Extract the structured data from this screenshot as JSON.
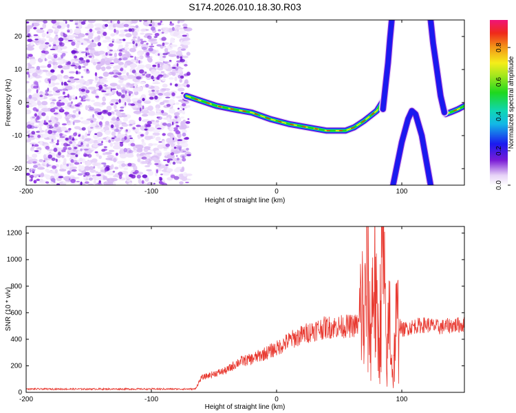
{
  "title": "S174.2026.010.18.30.R03",
  "chart_data": [
    {
      "type": "heatmap",
      "xlabel": "Height of straight line (km)",
      "ylabel": "Frequency (Hz)",
      "xlim": [
        -200,
        150
      ],
      "ylim": [
        -25,
        25
      ],
      "x_ticks": [
        -200,
        -100,
        0,
        100
      ],
      "x_tick_labels": [
        "-200",
        "-100",
        "0",
        "100"
      ],
      "y_ticks": [
        -20,
        -10,
        0,
        10,
        20
      ],
      "y_tick_labels": [
        "-20",
        "-10",
        "0",
        "10",
        "20"
      ],
      "noise_region_x": [
        -200,
        -70
      ],
      "tracks": [
        {
          "name": "main-doppler-track",
          "x": [
            -72,
            -60,
            -48,
            -35,
            -20,
            -5,
            10,
            25,
            40,
            55,
            62,
            70,
            80,
            85
          ],
          "y": [
            2,
            0.5,
            -1,
            -2,
            -3,
            -5,
            -6.5,
            -7.5,
            -8.5,
            -8.5,
            -7.5,
            -5.5,
            -2.5,
            0.5
          ]
        },
        {
          "name": "right-track",
          "x": [
            135,
            140,
            145,
            150
          ],
          "y": [
            -3.5,
            -2.8,
            -2,
            -1
          ]
        },
        {
          "name": "arch-track",
          "x": [
            93,
            100,
            105,
            108,
            111,
            116,
            123
          ],
          "y": [
            -25,
            -12,
            -5,
            -2.5,
            -3.5,
            -10,
            -25
          ]
        },
        {
          "name": "upper-left-branch",
          "x": [
            85,
            87,
            89,
            90.5,
            92
          ],
          "y": [
            -2,
            5,
            12,
            19,
            25
          ]
        },
        {
          "name": "upper-right-branch",
          "x": [
            123,
            125,
            128,
            131,
            134
          ],
          "y": [
            25,
            18,
            10,
            2,
            -3
          ]
        }
      ],
      "colorbar": {
        "label": "Normalized spectral amplitude",
        "ticks": [
          0.0,
          0.2,
          0.4,
          0.6,
          0.8
        ],
        "tick_labels": [
          "0.0",
          "0.2",
          "0.4",
          "0.6",
          "0.8"
        ],
        "range": [
          0,
          0.96
        ]
      }
    },
    {
      "type": "line",
      "xlabel": "Height of straight line (km)",
      "ylabel": "SNR (10 * v/v)",
      "xlim": [
        -200,
        150
      ],
      "ylim": [
        0,
        1250
      ],
      "x_ticks": [
        -200,
        -100,
        0,
        100
      ],
      "x_tick_labels": [
        "-200",
        "-100",
        "0",
        "100"
      ],
      "y_ticks": [
        0,
        200,
        400,
        600,
        800,
        1000,
        1200
      ],
      "y_tick_labels": [
        "0",
        "200",
        "400",
        "600",
        "800",
        "1000",
        "1200"
      ],
      "series": [
        {
          "name": "SNR",
          "color": "#e8382f",
          "x": [
            -200,
            -150,
            -100,
            -65,
            -60,
            -50,
            -40,
            -30,
            -20,
            -10,
            0,
            10,
            20,
            30,
            40,
            50,
            60,
            66,
            68,
            70,
            72,
            75,
            78,
            80,
            82,
            85,
            88,
            90,
            93,
            95,
            98,
            100,
            110,
            120,
            130,
            140,
            150
          ],
          "values": [
            25,
            25,
            25,
            25,
            110,
            140,
            165,
            230,
            250,
            290,
            330,
            390,
            430,
            470,
            490,
            495,
            500,
            510,
            700,
            480,
            900,
            420,
            1000,
            500,
            380,
            1100,
            120,
            650,
            80,
            480,
            520,
            470,
            500,
            510,
            490,
            505,
            510
          ]
        }
      ]
    }
  ],
  "colors": {
    "line": "#e8382f",
    "axis": "#000000",
    "background": "#ffffff"
  }
}
